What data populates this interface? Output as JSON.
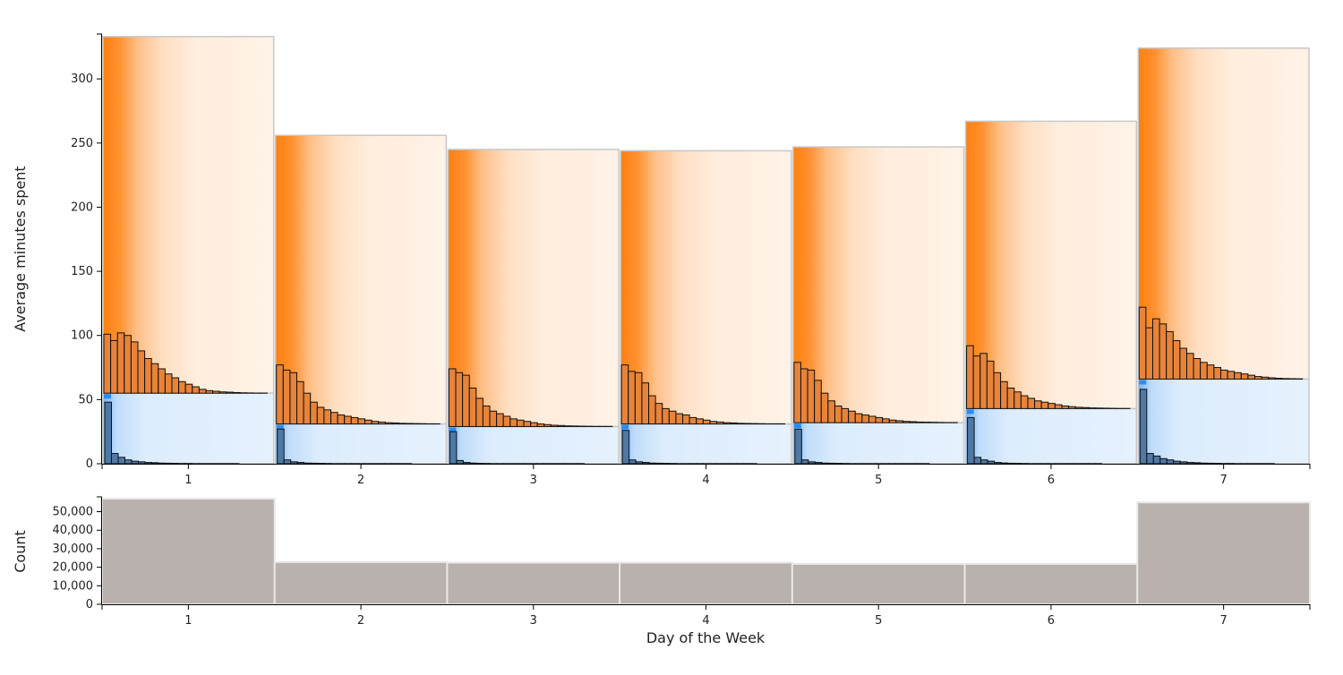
{
  "chart_data": [
    {
      "type": "bar",
      "description_of_marks": "stacked bars per day: lower segment (blue) and upper segment (orange), each containing a mini histogram",
      "categories": [
        "1",
        "2",
        "3",
        "4",
        "5",
        "6",
        "7"
      ],
      "xlabel": "",
      "ylabel": "Average minutes spent",
      "ylim": [
        0,
        335
      ],
      "yticks": [
        "0",
        "50",
        "100",
        "150",
        "200",
        "250",
        "300"
      ],
      "colors": {
        "lower": "#2a8cf0",
        "upper": "#ff7f0e",
        "frame": "#c8c8c8",
        "hist_blue": "#4e79a7",
        "hist_orange": "#e8833a"
      },
      "series": [
        {
          "name": "lower",
          "values": [
            55,
            31,
            29,
            31,
            32,
            43,
            66
          ]
        },
        {
          "name": "upper",
          "values": [
            278,
            225,
            216,
            213,
            215,
            224,
            258
          ]
        }
      ],
      "hist_lower": [
        [
          48,
          8,
          5,
          3,
          2,
          1.5,
          1,
          0.8,
          0.5,
          0.4,
          0.3,
          0.2,
          0.2,
          0.1,
          0.1,
          0.1,
          0.1,
          0.1,
          0.1,
          0.1
        ],
        [
          27,
          3,
          1.5,
          1,
          0.5,
          0.4,
          0.3,
          0.2,
          0.1,
          0.1,
          0.1,
          0.1,
          0.1,
          0.1,
          0.1,
          0.1,
          0.1,
          0.1,
          0.1,
          0.1
        ],
        [
          25,
          2.5,
          1,
          0.5,
          0.3,
          0.2,
          0.1,
          0.1,
          0.1,
          0.1,
          0.1,
          0.1,
          0.1,
          0.1,
          0.1,
          0.1,
          0.1,
          0.1,
          0.1,
          0.1
        ],
        [
          26,
          3,
          1.5,
          1,
          0.5,
          0.4,
          0.3,
          0.2,
          0.1,
          0.1,
          0.1,
          0.1,
          0.1,
          0.1,
          0.1,
          0.1,
          0.1,
          0.1,
          0.1,
          0.1
        ],
        [
          27,
          3,
          1.5,
          1,
          0.5,
          0.4,
          0.3,
          0.2,
          0.1,
          0.1,
          0.1,
          0.1,
          0.1,
          0.1,
          0.1,
          0.1,
          0.1,
          0.1,
          0.1,
          0.1
        ],
        [
          36,
          5,
          3,
          2,
          1,
          0.6,
          0.4,
          0.3,
          0.2,
          0.1,
          0.1,
          0.1,
          0.1,
          0.1,
          0.1,
          0.1,
          0.1,
          0.1,
          0.1,
          0.1
        ],
        [
          58,
          8,
          6,
          4,
          3,
          2,
          1.5,
          1,
          0.8,
          0.5,
          0.4,
          0.3,
          0.2,
          0.2,
          0.1,
          0.1,
          0.1,
          0.1,
          0.1,
          0.1
        ]
      ],
      "hist_upper": [
        [
          46,
          41,
          47,
          45,
          40,
          33,
          27,
          23,
          19,
          15,
          12,
          9,
          7,
          5,
          3,
          2,
          1.5,
          1,
          0.8,
          0.5,
          0.3,
          0.2,
          0.1,
          0.1,
          0.1
        ],
        [
          46,
          42,
          40,
          33,
          24,
          17,
          13,
          11,
          9,
          7,
          6,
          5,
          4,
          3,
          2,
          1.5,
          1,
          0.8,
          0.5,
          0.4,
          0.3,
          0.2,
          0.1,
          0.1,
          0.1
        ],
        [
          45,
          42,
          40,
          30,
          22,
          16,
          12,
          10,
          8,
          6,
          5,
          4,
          3,
          2,
          1.5,
          1,
          0.8,
          0.5,
          0.4,
          0.3,
          0.2,
          0.1,
          0.1,
          0.1,
          0.1
        ],
        [
          46,
          41,
          40,
          32,
          22,
          16,
          12,
          10,
          8,
          7,
          5,
          4,
          3,
          2,
          1.5,
          1,
          0.8,
          0.5,
          0.4,
          0.3,
          0.2,
          0.1,
          0.1,
          0.1,
          0.1
        ],
        [
          47,
          42,
          41,
          33,
          23,
          17,
          13,
          11,
          9,
          7,
          6,
          5,
          4,
          3,
          2,
          1.5,
          1,
          0.8,
          0.5,
          0.4,
          0.3,
          0.2,
          0.1,
          0.1,
          0.1
        ],
        [
          49,
          41,
          43,
          37,
          28,
          21,
          16,
          13,
          10,
          8,
          6,
          5,
          4,
          3,
          2,
          1.5,
          1,
          0.8,
          0.5,
          0.4,
          0.3,
          0.2,
          0.1,
          0.1,
          0.1
        ],
        [
          56,
          40,
          47,
          43,
          37,
          30,
          24,
          20,
          16,
          13,
          11,
          9,
          7,
          6,
          5,
          4,
          3,
          2,
          1.5,
          1,
          0.6,
          0.4,
          0.3,
          0.2,
          0.1
        ]
      ]
    },
    {
      "type": "bar",
      "categories": [
        "1",
        "2",
        "3",
        "4",
        "5",
        "6",
        "7"
      ],
      "values": [
        57000,
        22800,
        22500,
        22500,
        21800,
        21800,
        55000
      ],
      "xlabel": "Day of the Week",
      "ylabel": "Count",
      "ylim": [
        0,
        58000
      ],
      "yticks": [
        "0",
        "10,000",
        "20,000",
        "30,000",
        "40,000",
        "50,000"
      ],
      "colors": {
        "bar": "#b9b1ad",
        "stroke": "#e8e8e8"
      }
    }
  ]
}
